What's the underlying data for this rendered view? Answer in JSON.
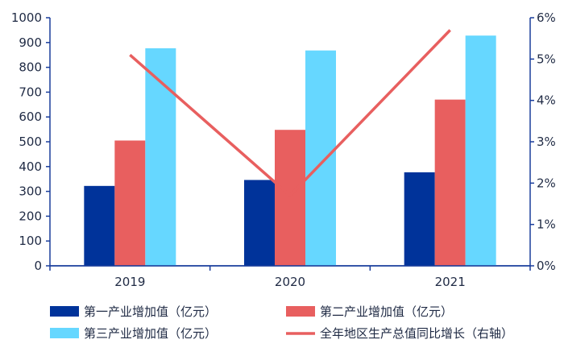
{
  "chart_data": {
    "type": "bar",
    "categories": [
      "2019",
      "2020",
      "2021"
    ],
    "series": [
      {
        "name": "第一产业增加值（亿元）",
        "kind": "bar",
        "axis": "left",
        "color": "#00339a",
        "values": [
          322,
          346,
          377
        ]
      },
      {
        "name": "第二产业增加值（亿元）",
        "kind": "bar",
        "axis": "left",
        "color": "#e85f5f",
        "values": [
          505,
          548,
          670
        ]
      },
      {
        "name": "第三产业增加值（亿元）",
        "kind": "bar",
        "axis": "left",
        "color": "#66d7ff",
        "values": [
          877,
          868,
          928
        ]
      },
      {
        "name": "全年地区生产总值同比增长（右轴）",
        "kind": "line",
        "axis": "right",
        "color": "#e85f5f",
        "values": [
          5.1,
          1.7,
          5.7
        ]
      }
    ],
    "y_left": {
      "min": 0,
      "max": 1000,
      "ticks": [
        "0",
        "100",
        "200",
        "300",
        "400",
        "500",
        "600",
        "700",
        "800",
        "900",
        "1000"
      ]
    },
    "y_right": {
      "min": 0,
      "max": 6,
      "ticks": [
        "0%",
        "1%",
        "2%",
        "3%",
        "4%",
        "5%",
        "6%"
      ]
    },
    "axis_color": "#1a3e9c"
  }
}
